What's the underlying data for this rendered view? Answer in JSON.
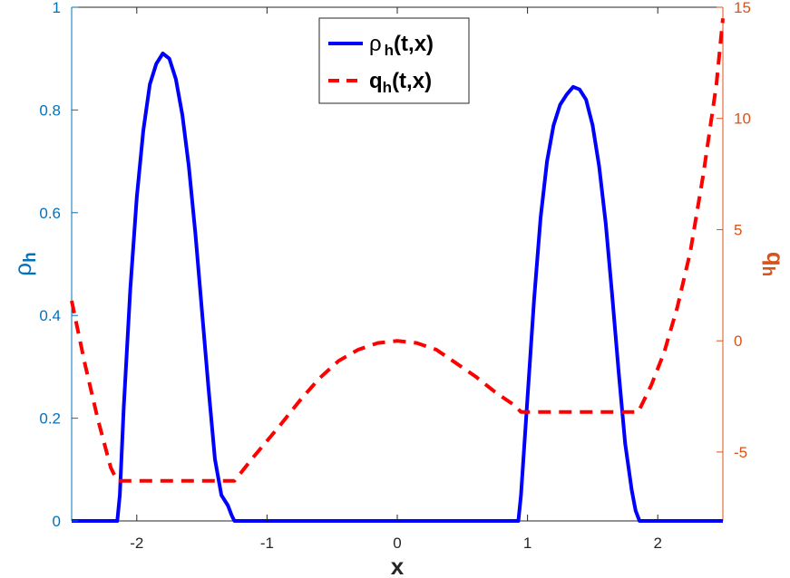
{
  "chart_data": {
    "type": "line",
    "xlabel": "x",
    "ylabel_left": {
      "base": "ρ",
      "sub": "h"
    },
    "ylabel_right": {
      "base": "q",
      "sub": "h"
    },
    "xlim": [
      -2.5,
      2.5
    ],
    "ylim_left": [
      0,
      1
    ],
    "ylim_right": [
      -8.1,
      15
    ],
    "x_ticks": [
      -2,
      -1,
      0,
      1,
      2
    ],
    "x_tick_labels": [
      "-2",
      "-1",
      "0",
      "1",
      "2"
    ],
    "y_left_ticks": [
      0,
      0.2,
      0.4,
      0.6,
      0.8,
      1
    ],
    "y_left_tick_labels": [
      "0",
      "0.2",
      "0.4",
      "0.6",
      "0.8",
      "1"
    ],
    "y_right_ticks": [
      -5,
      0,
      5,
      10,
      15
    ],
    "y_right_tick_labels": [
      "-5",
      "0",
      "5",
      "10",
      "15"
    ],
    "grid": false,
    "legend_position": "top-center",
    "series": [
      {
        "name": "ρ h(t,x)",
        "legend": {
          "base": "ρ",
          "sub": "h",
          "suffix": "(t,x)"
        },
        "axis": "left",
        "color": "#0000FF",
        "style": "solid",
        "x": [
          -2.5,
          -2.15,
          -2.13,
          -2.1,
          -2.05,
          -2.0,
          -1.95,
          -1.9,
          -1.85,
          -1.8,
          -1.75,
          -1.7,
          -1.65,
          -1.6,
          -1.55,
          -1.5,
          -1.45,
          -1.4,
          -1.35,
          -1.3,
          -1.27,
          -1.25,
          0.93,
          0.95,
          1.0,
          1.05,
          1.1,
          1.15,
          1.2,
          1.25,
          1.3,
          1.35,
          1.4,
          1.45,
          1.5,
          1.55,
          1.6,
          1.65,
          1.7,
          1.75,
          1.8,
          1.83,
          1.86,
          2.5
        ],
        "y": [
          0,
          0,
          0.05,
          0.22,
          0.45,
          0.63,
          0.76,
          0.85,
          0.89,
          0.91,
          0.9,
          0.86,
          0.79,
          0.69,
          0.56,
          0.41,
          0.26,
          0.12,
          0.05,
          0.03,
          0.01,
          0,
          0,
          0.05,
          0.24,
          0.43,
          0.59,
          0.7,
          0.77,
          0.81,
          0.83,
          0.845,
          0.84,
          0.82,
          0.77,
          0.69,
          0.58,
          0.44,
          0.29,
          0.15,
          0.06,
          0.02,
          0,
          0
        ]
      },
      {
        "name": "qh(t,x)",
        "legend": {
          "base": "q",
          "sub": "h",
          "suffix": "(t,x)"
        },
        "axis": "right",
        "color": "#FF0000",
        "style": "dashed",
        "x": [
          -2.5,
          -2.4,
          -2.3,
          -2.2,
          -2.15,
          -2.1,
          -1.9,
          -1.7,
          -1.5,
          -1.3,
          -1.25,
          -1.1,
          -1.0,
          -0.9,
          -0.75,
          -0.6,
          -0.45,
          -0.3,
          -0.15,
          0.0,
          0.15,
          0.3,
          0.45,
          0.6,
          0.75,
          0.9,
          0.95,
          1.2,
          1.5,
          1.8,
          1.85,
          1.95,
          2.05,
          2.15,
          2.25,
          2.35,
          2.45,
          2.5
        ],
        "y": [
          1.8,
          -1.0,
          -3.5,
          -5.7,
          -6.3,
          -6.3,
          -6.3,
          -6.3,
          -6.3,
          -6.3,
          -6.3,
          -5.2,
          -4.5,
          -3.8,
          -2.7,
          -1.7,
          -0.9,
          -0.4,
          -0.1,
          0.0,
          -0.1,
          -0.4,
          -1.0,
          -1.6,
          -2.3,
          -2.9,
          -3.2,
          -3.2,
          -3.2,
          -3.2,
          -3.2,
          -2.0,
          -0.5,
          1.5,
          4.0,
          7.5,
          11.5,
          14.5
        ]
      }
    ]
  }
}
